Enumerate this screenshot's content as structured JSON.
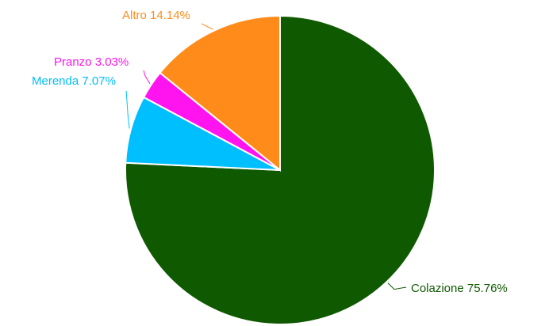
{
  "chart_data": {
    "type": "pie",
    "title": "",
    "start_angle_deg": 0,
    "direction": "clockwise",
    "slices": [
      {
        "label": "Colazione",
        "percent_label": "75.76%",
        "value": 75.76,
        "color": "#0f5a00"
      },
      {
        "label": "Merenda",
        "percent_label": "7.07%",
        "value": 7.07,
        "color": "#00bfff"
      },
      {
        "label": "Pranzo",
        "percent_label": "3.03%",
        "value": 3.03,
        "color": "#ff14f0"
      },
      {
        "label": "Altro",
        "percent_label": "14.14%",
        "value": 14.14,
        "color": "#ff8c1a"
      }
    ]
  }
}
